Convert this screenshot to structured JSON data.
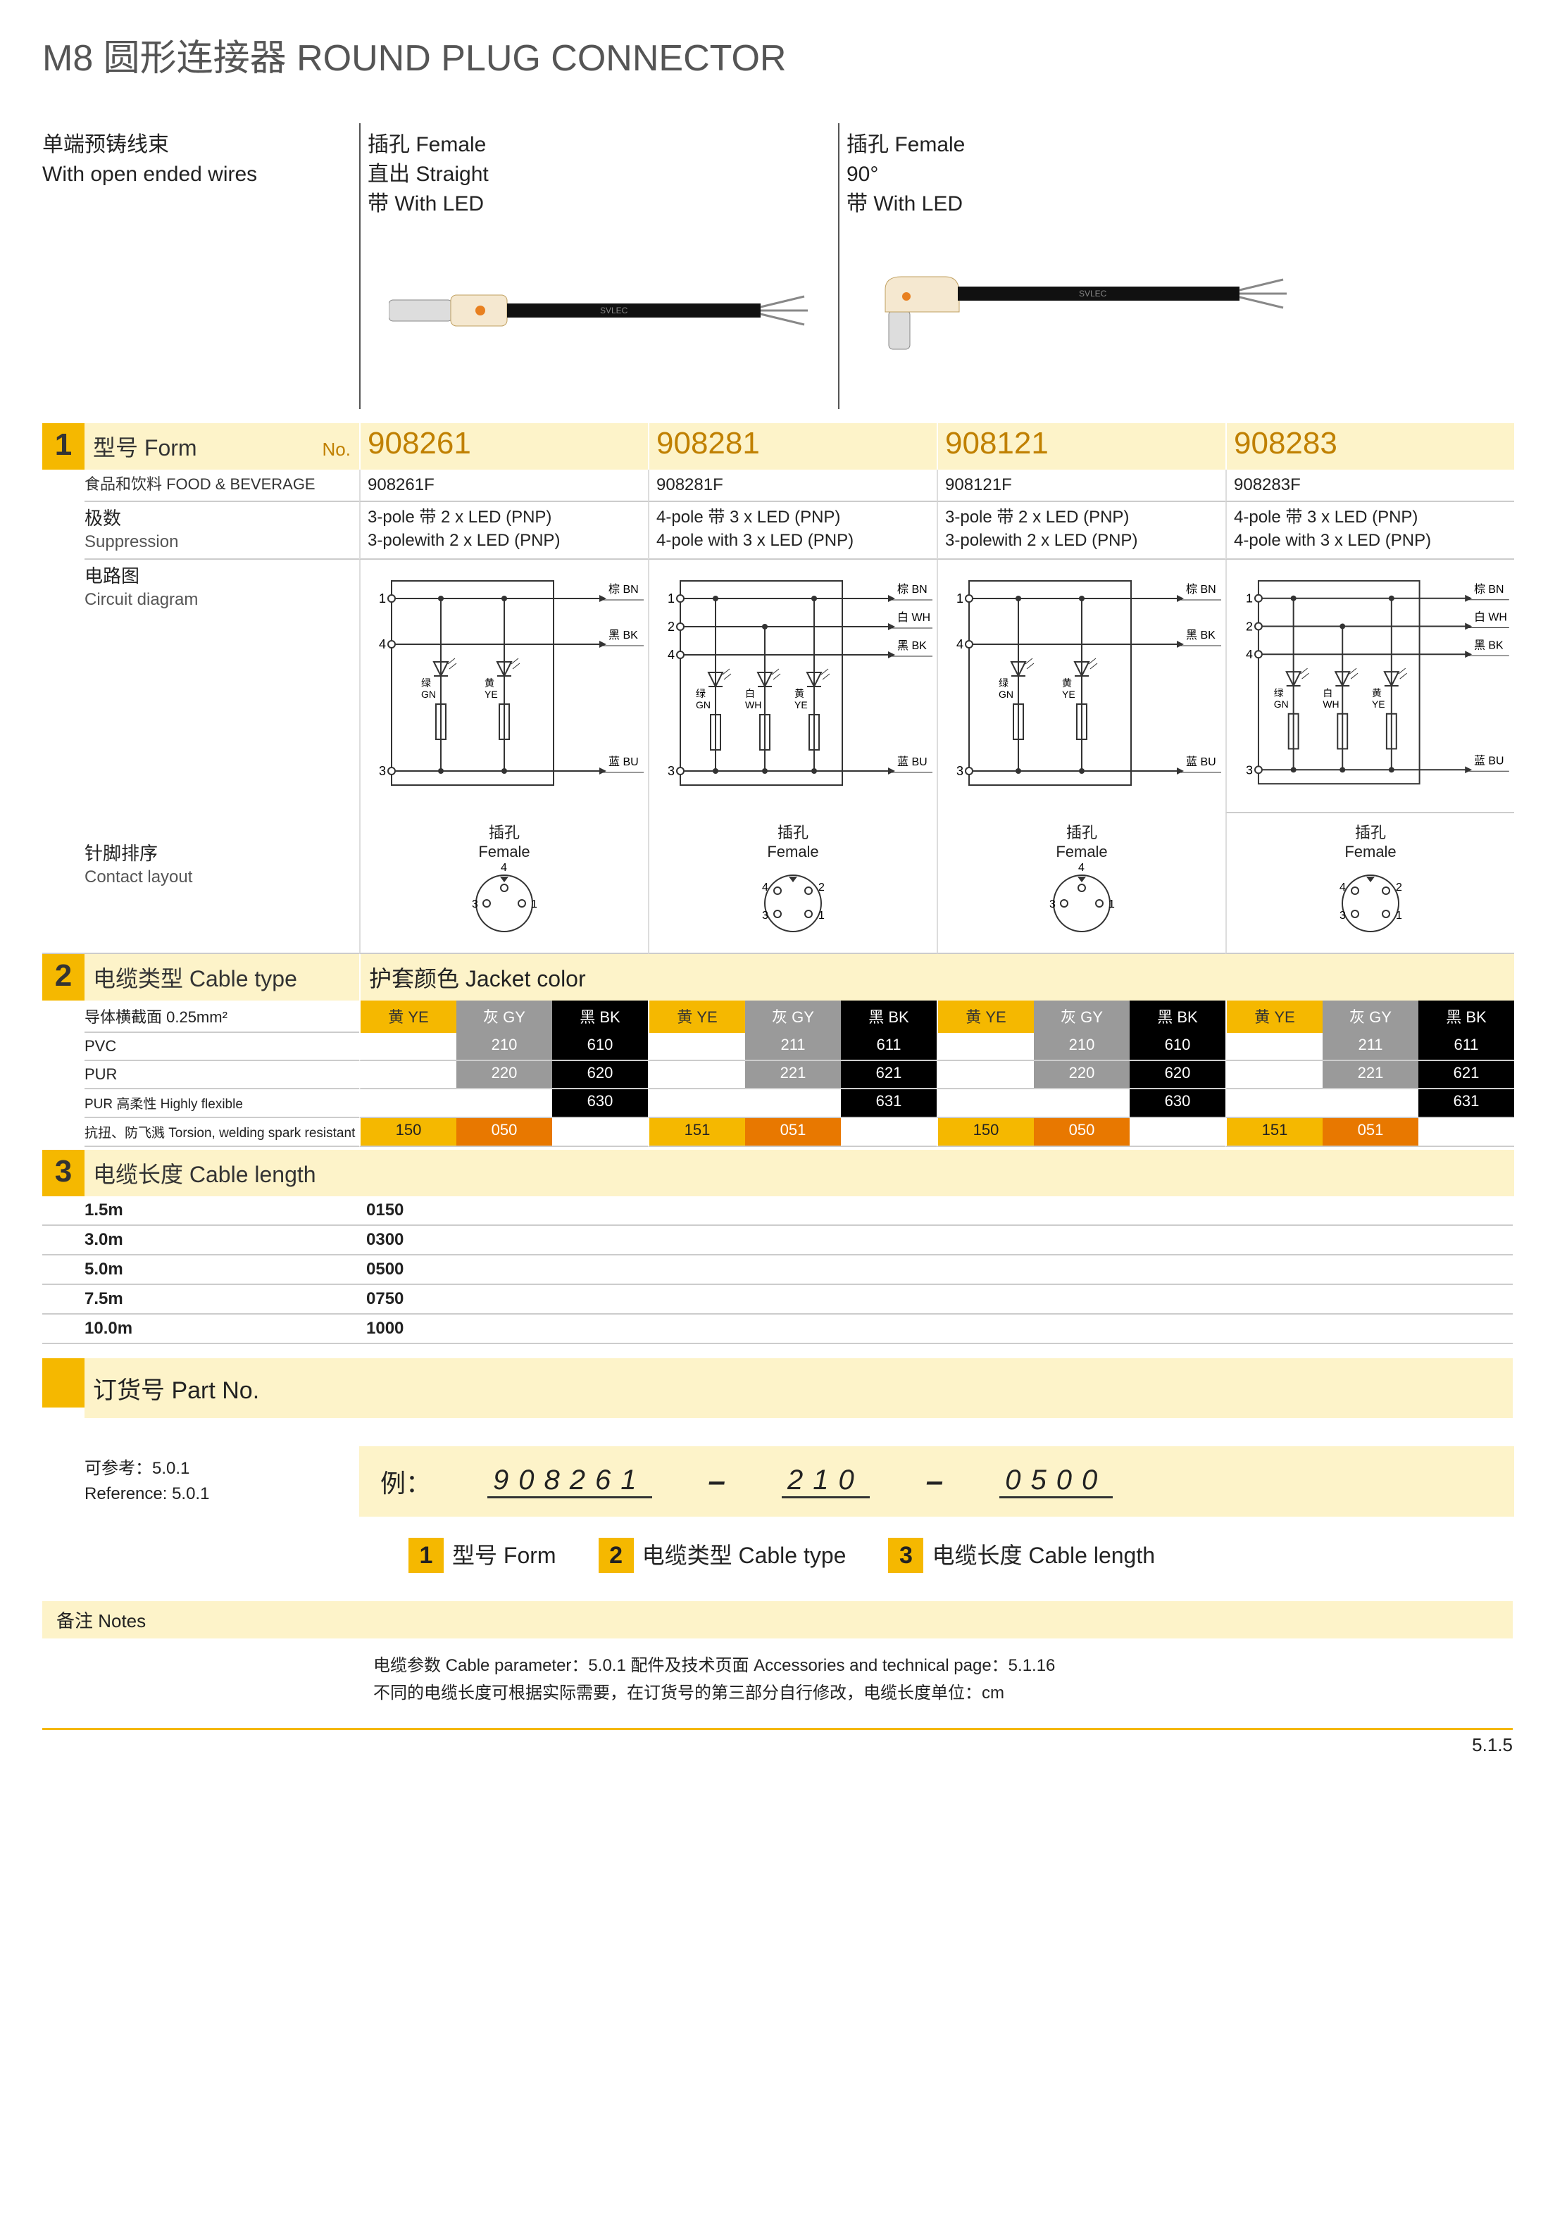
{
  "colors": {
    "accent": "#f5b800",
    "accent_light": "#fdf3c9",
    "orange": "#e87800",
    "grey": "#9a9a9a",
    "black": "#000000",
    "rule": "#cccccc"
  },
  "title": "M8 圆形连接器  ROUND PLUG CONNECTOR",
  "top_labels": {
    "left": {
      "cn": "单端预铸线束",
      "en": "With open ended wires"
    },
    "mid": [
      "插孔 Female",
      "直出 Straight",
      "带 With LED"
    ],
    "right": [
      "插孔 Female",
      "90°",
      "带 With LED"
    ]
  },
  "section1": {
    "num": "1",
    "head_cn": "型号 Form",
    "head_no": "No.",
    "fb_label": "食品和饮料 FOOD & BEVERAGE",
    "poles_cn": "极数",
    "poles_en": "Suppression",
    "circuit_cn": "电路图",
    "circuit_en": "Circuit diagram",
    "contact_cn": "针脚排序",
    "contact_en": "Contact layout",
    "contact_title_cn": "插孔",
    "contact_title_en": "Female",
    "products": [
      {
        "model": "908261",
        "fb": "908261F",
        "p_cn": "3-pole 带 2 x LED (PNP)",
        "p_en": "3-polewith 2 x LED (PNP)",
        "poles": 3
      },
      {
        "model": "908281",
        "fb": "908281F",
        "p_cn": "4-pole 带 3 x LED (PNP)",
        "p_en": "4-pole with 3 x LED (PNP)",
        "poles": 4
      },
      {
        "model": "908121",
        "fb": "908121F",
        "p_cn": "3-pole 带 2 x LED (PNP)",
        "p_en": "3-polewith 2 x LED (PNP)",
        "poles": 3
      },
      {
        "model": "908283",
        "fb": "908283F",
        "p_cn": "4-pole 带 3 x LED (PNP)",
        "p_en": "4-pole with 3 x LED (PNP)",
        "poles": 4
      }
    ],
    "circuit_labels": {
      "BN": "棕 BN",
      "WH": "白 WH",
      "BK": "黑 BK",
      "BU": "蓝 BU",
      "GN": "绿\nGN",
      "YE": "黄\nYE",
      "WHs": "白\nWH"
    }
  },
  "section2": {
    "num": "2",
    "head": "电缆类型 Cable type",
    "jacket_head": "护套颜色 Jacket color",
    "conductor": "导体横截面 0.25mm²",
    "color_heads": [
      "黄 YE",
      "灰 GY",
      "黑 BK"
    ],
    "rows": [
      {
        "label": "PVC",
        "cols": [
          [
            "",
            "210",
            "610"
          ],
          [
            "",
            "211",
            "611"
          ],
          [
            "",
            "210",
            "610"
          ],
          [
            "",
            "211",
            "611"
          ]
        ]
      },
      {
        "label": "PUR",
        "cols": [
          [
            "",
            "220",
            "620"
          ],
          [
            "",
            "221",
            "621"
          ],
          [
            "",
            "220",
            "620"
          ],
          [
            "",
            "221",
            "621"
          ]
        ]
      },
      {
        "label": "PUR 高柔性 Highly flexible",
        "cols": [
          [
            "",
            "",
            "630"
          ],
          [
            "",
            "",
            "631"
          ],
          [
            "",
            "",
            "630"
          ],
          [
            "",
            "",
            "631"
          ]
        ]
      },
      {
        "label": "抗扭、防飞溅 Torsion, welding spark resistant",
        "cols": [
          [
            "150",
            "050",
            ""
          ],
          [
            "151",
            "051",
            ""
          ],
          [
            "150",
            "050",
            ""
          ],
          [
            "151",
            "051",
            ""
          ]
        ],
        "special": true
      }
    ]
  },
  "section3": {
    "num": "3",
    "head": "电缆长度 Cable length",
    "rows": [
      {
        "len": "1.5m",
        "code": "0150"
      },
      {
        "len": "3.0m",
        "code": "0300"
      },
      {
        "len": "5.0m",
        "code": "0500"
      },
      {
        "len": "7.5m",
        "code": "0750"
      },
      {
        "len": "10.0m",
        "code": "1000"
      }
    ]
  },
  "partno": {
    "head": "订货号 Part No.",
    "ref_cn": "可参考：5.0.1",
    "ref_en": "Reference: 5.0.1",
    "example_label": "例：",
    "example_parts": [
      "908261",
      "210",
      "0500"
    ],
    "legend": [
      "型号 Form",
      "电缆类型 Cable type",
      "电缆长度 Cable length"
    ]
  },
  "notes": {
    "head": "备注 Notes",
    "line1": "电缆参数  Cable parameter：5.0.1      配件及技术页面  Accessories and technical page：5.1.16",
    "line2": "不同的电缆长度可根据实际需要，在订货号的第三部分自行修改，电缆长度单位：cm"
  },
  "page_num": "5.1.5"
}
